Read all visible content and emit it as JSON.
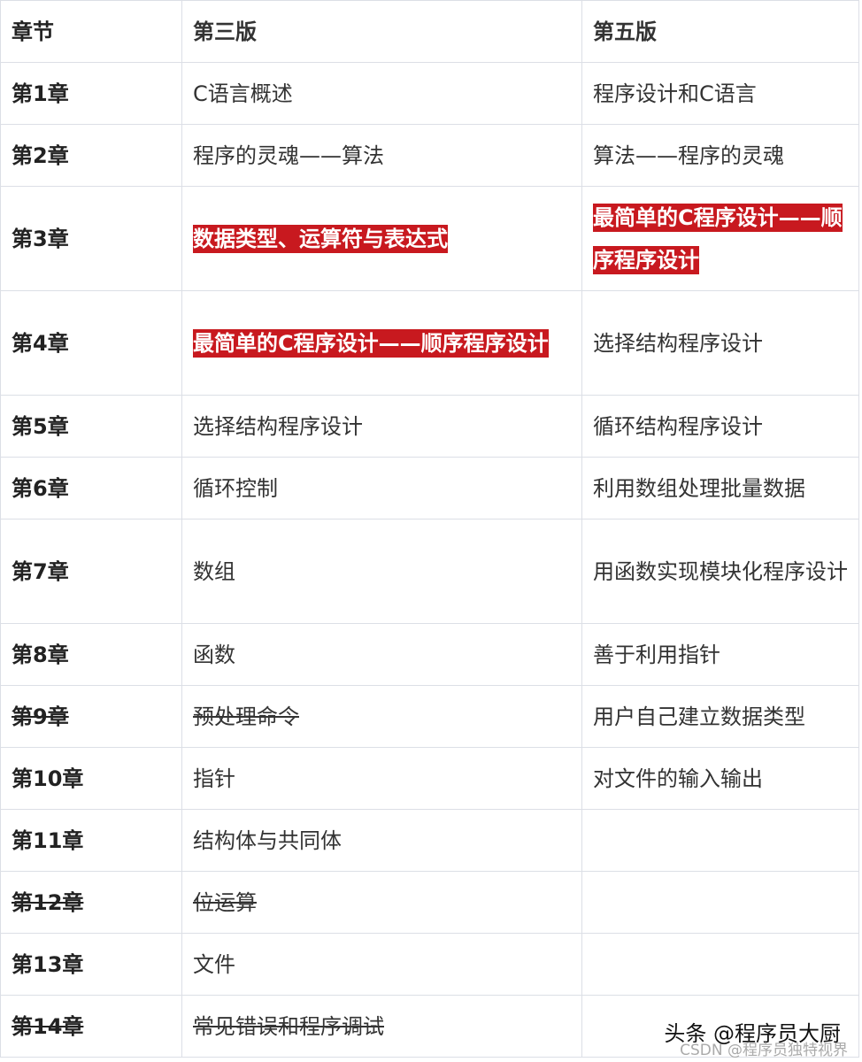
{
  "headers": [
    "章节",
    "第三版",
    "第五版"
  ],
  "rows": [
    {
      "chapter": "第1章",
      "third": "C语言概述",
      "fifth": "程序设计和C语言",
      "h": 70
    },
    {
      "chapter": "第2章",
      "third": "程序的灵魂——算法",
      "fifth": "算法——程序的灵魂",
      "h": 70
    },
    {
      "chapter": "第3章",
      "third": "数据类型、运算符与表达式",
      "fifth": "最简单的C程序设计——顺序程序设计",
      "third_highlight": true,
      "fifth_highlight": true,
      "h": 118
    },
    {
      "chapter": "第4章",
      "third": "最简单的C程序设计——顺序程序设计",
      "fifth": "选择结构程序设计",
      "third_highlight": true,
      "h": 118
    },
    {
      "chapter": "第5章",
      "third": "选择结构程序设计",
      "fifth": "循环结构程序设计",
      "h": 70
    },
    {
      "chapter": "第6章",
      "third": "循环控制",
      "fifth": "利用数组处理批量数据",
      "h": 70
    },
    {
      "chapter": "第7章",
      "third": "数组",
      "fifth": "用函数实现模块化程序设计",
      "h": 118
    },
    {
      "chapter": "第8章",
      "third": "函数",
      "fifth": "善于利用指针",
      "h": 70
    },
    {
      "chapter": "第9章",
      "third": "预处理命令",
      "fifth": "用户自己建立数据类型",
      "struck": true,
      "h": 70
    },
    {
      "chapter": "第10章",
      "third": "指针",
      "fifth": "对文件的输入输出",
      "h": 70
    },
    {
      "chapter": "第11章",
      "third": "结构体与共同体",
      "fifth": "",
      "h": 70
    },
    {
      "chapter": "第12章",
      "third": "位运算",
      "fifth": "",
      "struck": true,
      "h": 70
    },
    {
      "chapter": "第13章",
      "third": "文件",
      "fifth": "",
      "h": 70
    },
    {
      "chapter": "第14章",
      "third": "常见错误和程序调试",
      "fifth": "",
      "struck": true,
      "h": 70
    }
  ],
  "highlight_color": "#c8191f",
  "watermarks": [
    "头条 @程序员大厨",
    "CSDN @程序员独特视界"
  ]
}
